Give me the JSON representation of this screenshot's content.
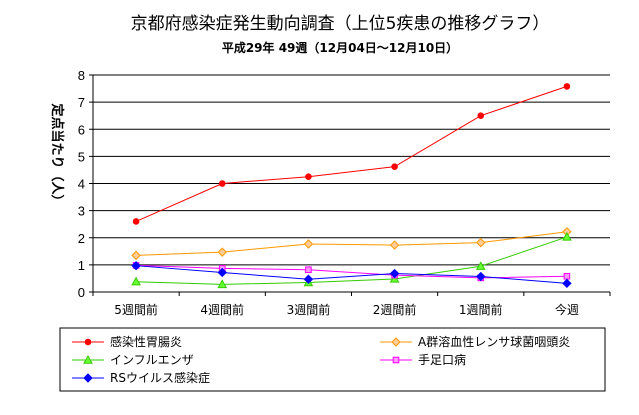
{
  "chart_data": {
    "type": "line",
    "title": "京都府感染症発生動向調査（上位5疾患の推移グラフ）",
    "subtitle": "平成29年 49週（12月04日〜12月10日）",
    "ylabel": "定点当たり（人）",
    "xlabel": "",
    "categories": [
      "5週間前",
      "4週間前",
      "3週間前",
      "2週間前",
      "1週間前",
      "今週"
    ],
    "ylim": [
      0,
      8
    ],
    "yticks": [
      0,
      1,
      2,
      3,
      4,
      5,
      6,
      7,
      8
    ],
    "grid": true,
    "legend_position": "bottom",
    "series": [
      {
        "name": "感染性胃腸炎",
        "color": "#ff0000",
        "marker": "circle",
        "marker_fill": "#ff0000",
        "values": [
          2.6,
          4.0,
          4.25,
          4.62,
          6.5,
          7.58
        ]
      },
      {
        "name": "A群溶血性レンサ球菌咽頭炎",
        "color": "#ff9900",
        "marker": "diamond",
        "marker_fill": "#ffcc99",
        "values": [
          1.35,
          1.47,
          1.77,
          1.73,
          1.82,
          2.22
        ]
      },
      {
        "name": "インフルエンザ",
        "color": "#33cc00",
        "marker": "triangle",
        "marker_fill": "#66ff33",
        "values": [
          0.38,
          0.28,
          0.35,
          0.48,
          0.95,
          2.03
        ]
      },
      {
        "name": "手足口病",
        "color": "#ff00ff",
        "marker": "square",
        "marker_fill": "#ff99ff",
        "values": [
          0.98,
          0.87,
          0.82,
          0.62,
          0.52,
          0.58
        ]
      },
      {
        "name": "RSウイルス感染症",
        "color": "#0000ff",
        "marker": "diamond",
        "marker_fill": "#0000ff",
        "values": [
          0.97,
          0.72,
          0.47,
          0.68,
          0.57,
          0.32
        ]
      }
    ]
  }
}
